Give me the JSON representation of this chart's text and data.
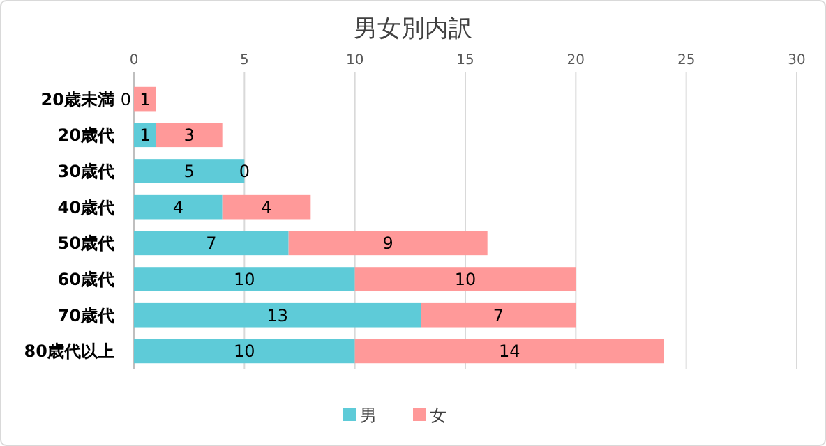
{
  "chart_data": {
    "type": "bar",
    "title": "男女別内訳",
    "orientation": "horizontal",
    "stacked": true,
    "categories": [
      "20歳未満",
      "20歳代",
      "30歳代",
      "40歳代",
      "50歳代",
      "60歳代",
      "70歳代",
      "80歳代以上"
    ],
    "series": [
      {
        "name": "男",
        "color": "#5ecbd8",
        "values": [
          0,
          1,
          5,
          4,
          7,
          10,
          13,
          10
        ]
      },
      {
        "name": "女",
        "color": "#ff9999",
        "values": [
          1,
          3,
          0,
          4,
          9,
          10,
          7,
          14
        ]
      }
    ],
    "xlim": [
      0,
      30
    ],
    "xticks": [
      0,
      5,
      10,
      15,
      20,
      25,
      30
    ],
    "grid": "x",
    "legend": "bottom",
    "data_labels": true
  }
}
